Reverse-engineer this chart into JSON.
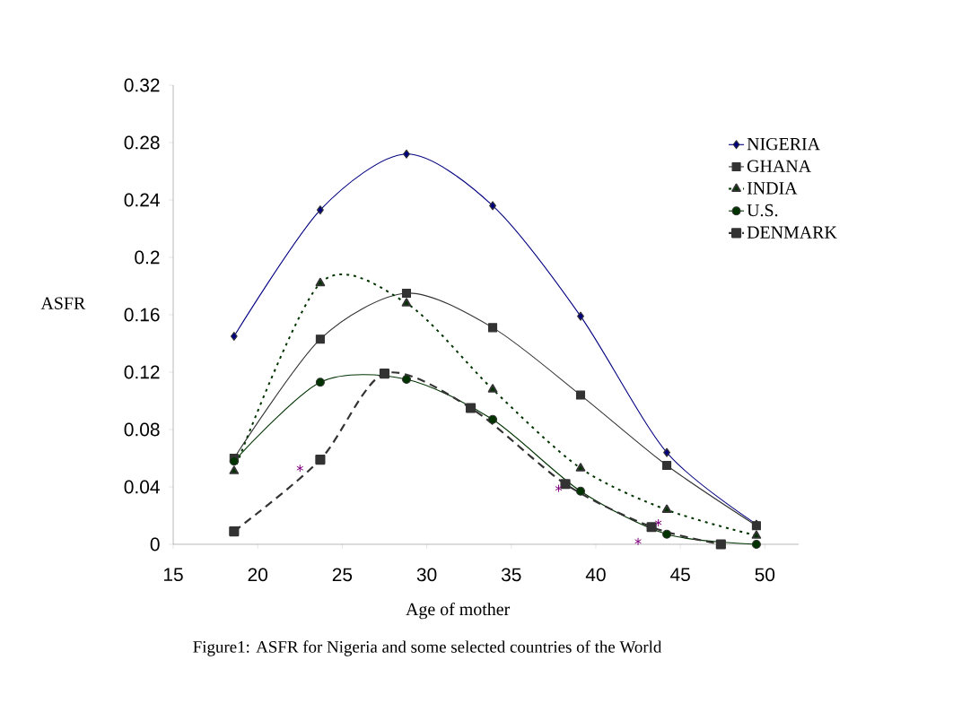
{
  "chart_data": {
    "type": "line",
    "title": "Figure1: ASFR  for Nigeria and some selected countries of the World",
    "xlabel": "Age of mother",
    "ylabel": "ASFR",
    "x": [
      18.6,
      23.7,
      28.8,
      33.9,
      39.1,
      44.2,
      49.5
    ],
    "series": [
      {
        "name": "NIGERIA",
        "color": "#000080",
        "marker": "diamond",
        "line_style": "solid",
        "values": [
          0.145,
          0.233,
          0.272,
          0.236,
          0.159,
          0.064,
          0.014
        ]
      },
      {
        "name": "GHANA",
        "color": "#333333",
        "marker": "square",
        "line_style": "solid",
        "values": [
          0.06,
          0.143,
          0.175,
          0.151,
          0.104,
          0.055,
          0.013
        ]
      },
      {
        "name": "INDIA",
        "color": "#003300",
        "marker": "triangle",
        "line_style": "dotted",
        "values": [
          0.051,
          0.182,
          0.168,
          0.108,
          0.053,
          0.024,
          0.006
        ]
      },
      {
        "name": "U.S.",
        "color": "#003300",
        "marker": "circle",
        "line_style": "solid",
        "values": [
          0.058,
          0.113,
          0.115,
          0.087,
          0.037,
          0.007,
          0.0
        ]
      },
      {
        "name": "DENMARK",
        "color": "#333333",
        "marker": "square",
        "line_style": "dashed",
        "x": [
          18.6,
          23.7,
          27.5,
          32.6,
          38.2,
          43.3,
          47.4
        ],
        "values": [
          0.009,
          0.059,
          0.119,
          0.095,
          0.042,
          0.012,
          0.0
        ]
      },
      {
        "type": "scatter",
        "color": "#800080",
        "marker": "cross",
        "x": [
          22.5,
          37.8,
          42.5,
          43.7
        ],
        "values": [
          0.053,
          0.039,
          0.002,
          0.015
        ]
      }
    ],
    "xlim": [
      15,
      52
    ],
    "xticks": [
      15,
      20,
      25,
      30,
      35,
      40,
      45,
      50
    ],
    "ylim": [
      0,
      0.32
    ],
    "yticks": [
      0,
      0.04,
      0.08,
      0.12,
      0.16,
      0.2,
      0.24,
      0.28,
      0.32
    ],
    "grid": false,
    "legend": "top right"
  }
}
